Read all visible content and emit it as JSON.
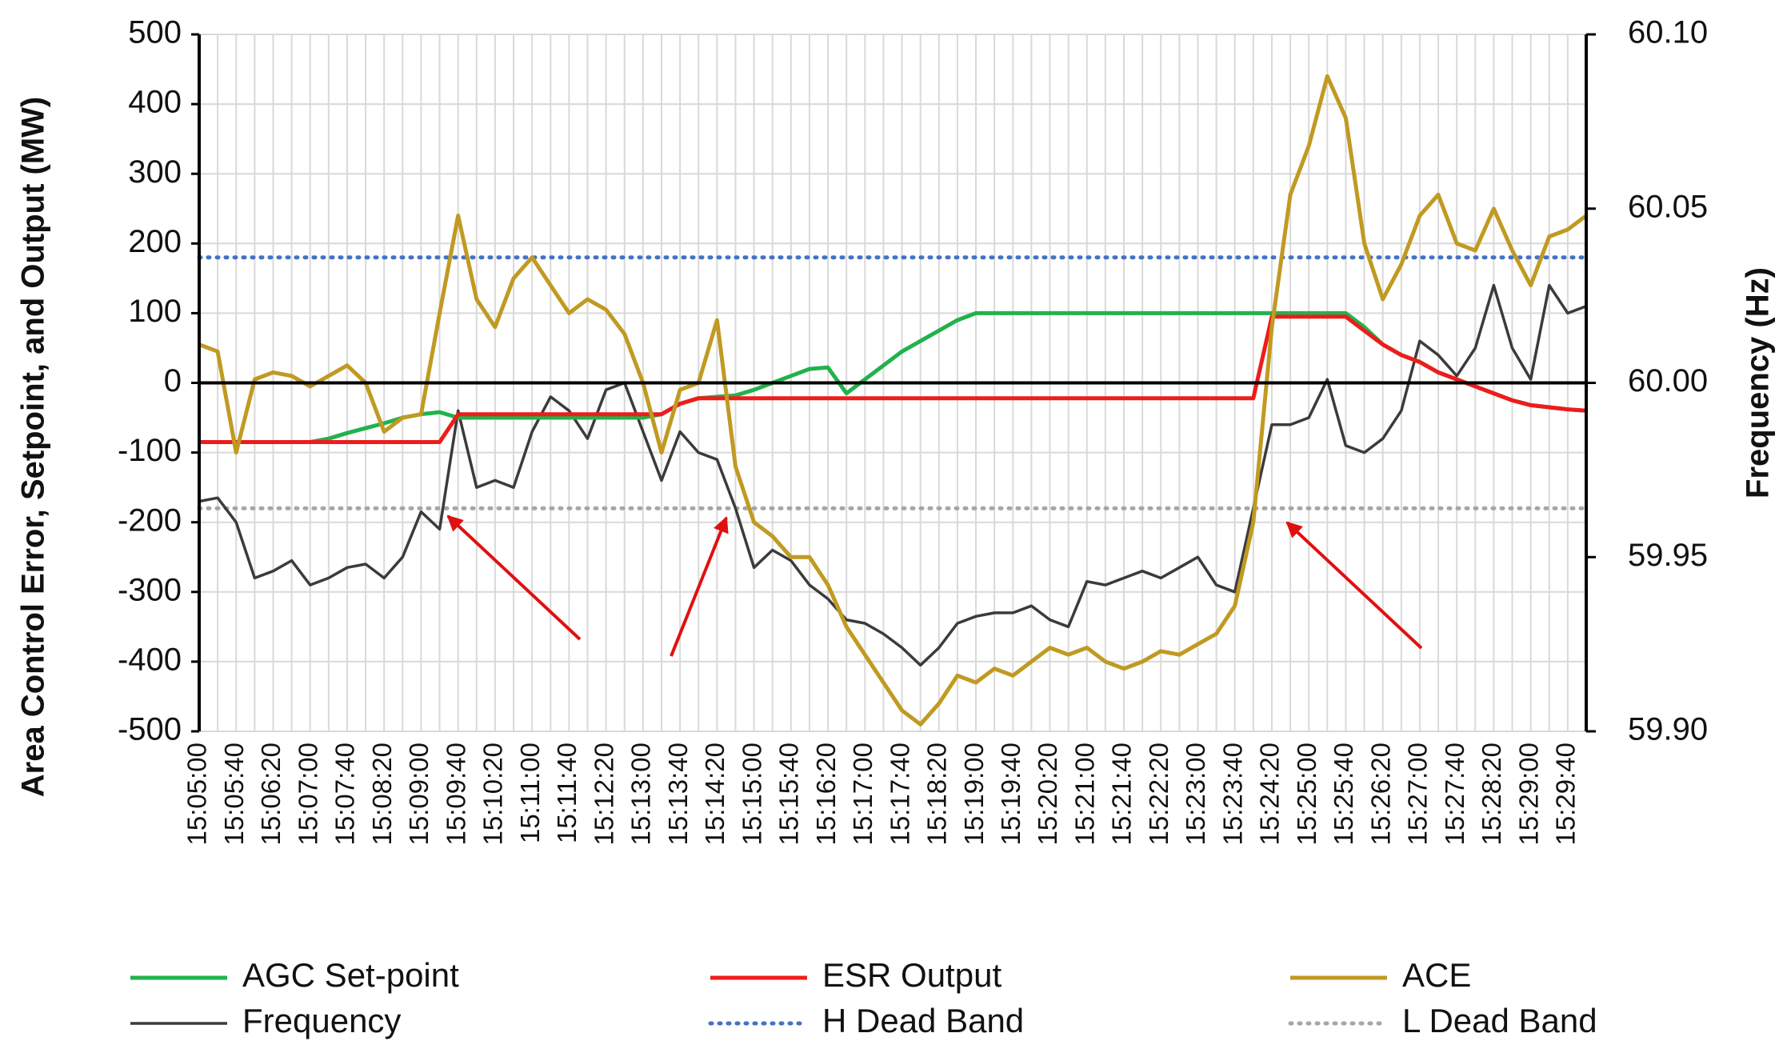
{
  "chart_data": {
    "type": "line",
    "y_label": "Area Control Error, Setpoint, and Output (MW)",
    "y2_label": "Frequency (Hz)",
    "categories": [
      "15:05:00",
      null,
      "15:05:40",
      null,
      "15:06:20",
      null,
      "15:07:00",
      null,
      "15:07:40",
      null,
      "15:08:20",
      null,
      "15:09:00",
      null,
      "15:09:40",
      null,
      "15:10:20",
      null,
      "15:11:00",
      null,
      "15:11:40",
      null,
      "15:12:20",
      null,
      "15:13:00",
      null,
      "15:13:40",
      null,
      "15:14:20",
      null,
      "15:15:00",
      null,
      "15:15:40",
      null,
      "15:16:20",
      null,
      "15:17:00",
      null,
      "15:17:40",
      null,
      "15:18:20",
      null,
      "15:19:00",
      null,
      "15:19:40",
      null,
      "15:20:20",
      null,
      "15:21:00",
      null,
      "15:21:40",
      null,
      "15:22:20",
      null,
      "15:23:00",
      null,
      "15:23:40",
      null,
      "15:24:20",
      null,
      "15:25:00",
      null,
      "15:25:40",
      null,
      "15:26:20",
      null,
      "15:27:00",
      null,
      "15:27:40",
      null,
      "15:28:20",
      null,
      "15:29:00",
      null,
      "15:29:40",
      null
    ],
    "ylim": [
      -500,
      500
    ],
    "yticks": [
      -500,
      -400,
      -300,
      -200,
      -100,
      0,
      100,
      200,
      300,
      400,
      500
    ],
    "y2lim": [
      59.9,
      60.1
    ],
    "y2ticks": [
      {
        "value": 59.9,
        "label": "59.90"
      },
      59.95,
      {
        "value": 60,
        "label": "60.00"
      },
      60.05,
      {
        "value": 60.1,
        "label": "60.10"
      }
    ],
    "grid": true,
    "legend": "bottom",
    "series": [
      {
        "name": "H Dead Band",
        "color": "#4472c4",
        "style": "dotted",
        "values": [
          180,
          180,
          180,
          180,
          180,
          180,
          180,
          180,
          180,
          180,
          180,
          180,
          180,
          180,
          180,
          180,
          180,
          180,
          180,
          180,
          180,
          180,
          180,
          180,
          180,
          180,
          180,
          180,
          180,
          180,
          180,
          180,
          180,
          180,
          180,
          180,
          180,
          180,
          180,
          180,
          180,
          180,
          180,
          180,
          180,
          180,
          180,
          180,
          180,
          180,
          180,
          180,
          180,
          180,
          180,
          180,
          180,
          180,
          180,
          180,
          180,
          180,
          180,
          180,
          180,
          180,
          180,
          180,
          180,
          180,
          180,
          180,
          180,
          180,
          180,
          180
        ]
      },
      {
        "name": "L Dead Band",
        "color": "#a6a6a6",
        "style": "dotted",
        "values": [
          -180,
          -180,
          -180,
          -180,
          -180,
          -180,
          -180,
          -180,
          -180,
          -180,
          -180,
          -180,
          -180,
          -180,
          -180,
          -180,
          -180,
          -180,
          -180,
          -180,
          -180,
          -180,
          -180,
          -180,
          -180,
          -180,
          -180,
          -180,
          -180,
          -180,
          -180,
          -180,
          -180,
          -180,
          -180,
          -180,
          -180,
          -180,
          -180,
          -180,
          -180,
          -180,
          -180,
          -180,
          -180,
          -180,
          -180,
          -180,
          -180,
          -180,
          -180,
          -180,
          -180,
          -180,
          -180,
          -180,
          -180,
          -180,
          -180,
          -180,
          -180,
          -180,
          -180,
          -180,
          -180,
          -180,
          -180,
          -180,
          -180,
          -180,
          -180,
          -180,
          -180,
          -180,
          -180,
          -180
        ]
      },
      {
        "name": "Frequency",
        "color": "#3b3b3b",
        "style": "solid",
        "axis": "y2",
        "values": [
          59.966,
          59.967,
          59.96,
          59.944,
          59.946,
          59.949,
          59.942,
          59.944,
          59.947,
          59.948,
          59.944,
          59.95,
          59.963,
          59.958,
          59.992,
          59.97,
          59.972,
          59.97,
          59.986,
          59.996,
          59.992,
          59.984,
          59.998,
          60.0,
          59.986,
          59.972,
          59.986,
          59.98,
          59.978,
          59.964,
          59.947,
          59.952,
          59.949,
          59.942,
          59.938,
          59.932,
          59.931,
          59.928,
          59.924,
          59.919,
          59.924,
          59.931,
          59.933,
          59.934,
          59.934,
          59.936,
          59.932,
          59.93,
          59.943,
          59.942,
          59.944,
          59.946,
          59.944,
          59.947,
          59.95,
          59.942,
          59.94,
          59.964,
          59.988,
          59.988,
          59.99,
          60.001,
          59.982,
          59.98,
          59.984,
          59.992,
          60.012,
          60.008,
          60.002,
          60.01,
          60.028,
          60.01,
          60.001,
          60.028,
          60.02,
          60.022
        ]
      },
      {
        "name": "AGC Set-point",
        "color": "#22b24c",
        "style": "solid",
        "values": [
          -85,
          -85,
          -85,
          -85,
          -85,
          -85,
          -85,
          -80,
          -72,
          -65,
          -58,
          -50,
          -45,
          -42,
          -50,
          -50,
          -50,
          -50,
          -50,
          -50,
          -50,
          -50,
          -50,
          -50,
          -50,
          -45,
          -30,
          -22,
          -20,
          -18,
          -10,
          0,
          10,
          20,
          22,
          -15,
          5,
          25,
          45,
          60,
          75,
          90,
          100,
          100,
          100,
          100,
          100,
          100,
          100,
          100,
          100,
          100,
          100,
          100,
          100,
          100,
          100,
          100,
          100,
          100,
          100,
          100,
          100,
          80,
          55,
          40,
          30,
          15,
          5,
          -5,
          -15,
          -25,
          -32,
          -35,
          -38,
          -40
        ]
      },
      {
        "name": "ESR Output",
        "color": "#ee1c1c",
        "style": "solid",
        "values": [
          -85,
          -85,
          -85,
          -85,
          -85,
          -85,
          -85,
          -85,
          -85,
          -85,
          -85,
          -85,
          -85,
          -85,
          -45,
          -45,
          -45,
          -45,
          -45,
          -45,
          -45,
          -45,
          -45,
          -45,
          -45,
          -45,
          -30,
          -22,
          -22,
          -22,
          -22,
          -22,
          -22,
          -22,
          -22,
          -22,
          -22,
          -22,
          -22,
          -22,
          -22,
          -22,
          -22,
          -22,
          -22,
          -22,
          -22,
          -22,
          -22,
          -22,
          -22,
          -22,
          -22,
          -22,
          -22,
          -22,
          -22,
          -22,
          95,
          95,
          95,
          95,
          95,
          75,
          55,
          40,
          30,
          15,
          5,
          -5,
          -15,
          -25,
          -32,
          -35,
          -38,
          -40
        ]
      },
      {
        "name": "ACE",
        "color": "#c09a22",
        "style": "solid",
        "values": [
          55,
          45,
          -100,
          5,
          15,
          10,
          -5,
          10,
          25,
          0,
          -70,
          -50,
          -45,
          100,
          240,
          120,
          80,
          150,
          180,
          140,
          100,
          120,
          105,
          70,
          0,
          -100,
          -10,
          0,
          90,
          -120,
          -200,
          -220,
          -250,
          -250,
          -290,
          -350,
          -390,
          -430,
          -470,
          -490,
          -460,
          -420,
          -430,
          -410,
          -420,
          -400,
          -380,
          -390,
          -380,
          -400,
          -410,
          -400,
          -385,
          -390,
          -375,
          -360,
          -320,
          -200,
          80,
          270,
          340,
          440,
          380,
          200,
          120,
          170,
          240,
          270,
          200,
          190,
          250,
          190,
          140,
          210,
          220,
          240
        ]
      }
    ],
    "legend_order": [
      "AGC Set-point",
      "ESR Output",
      "ACE",
      "Frequency",
      "H Dead Band",
      "L Dead Band"
    ]
  }
}
